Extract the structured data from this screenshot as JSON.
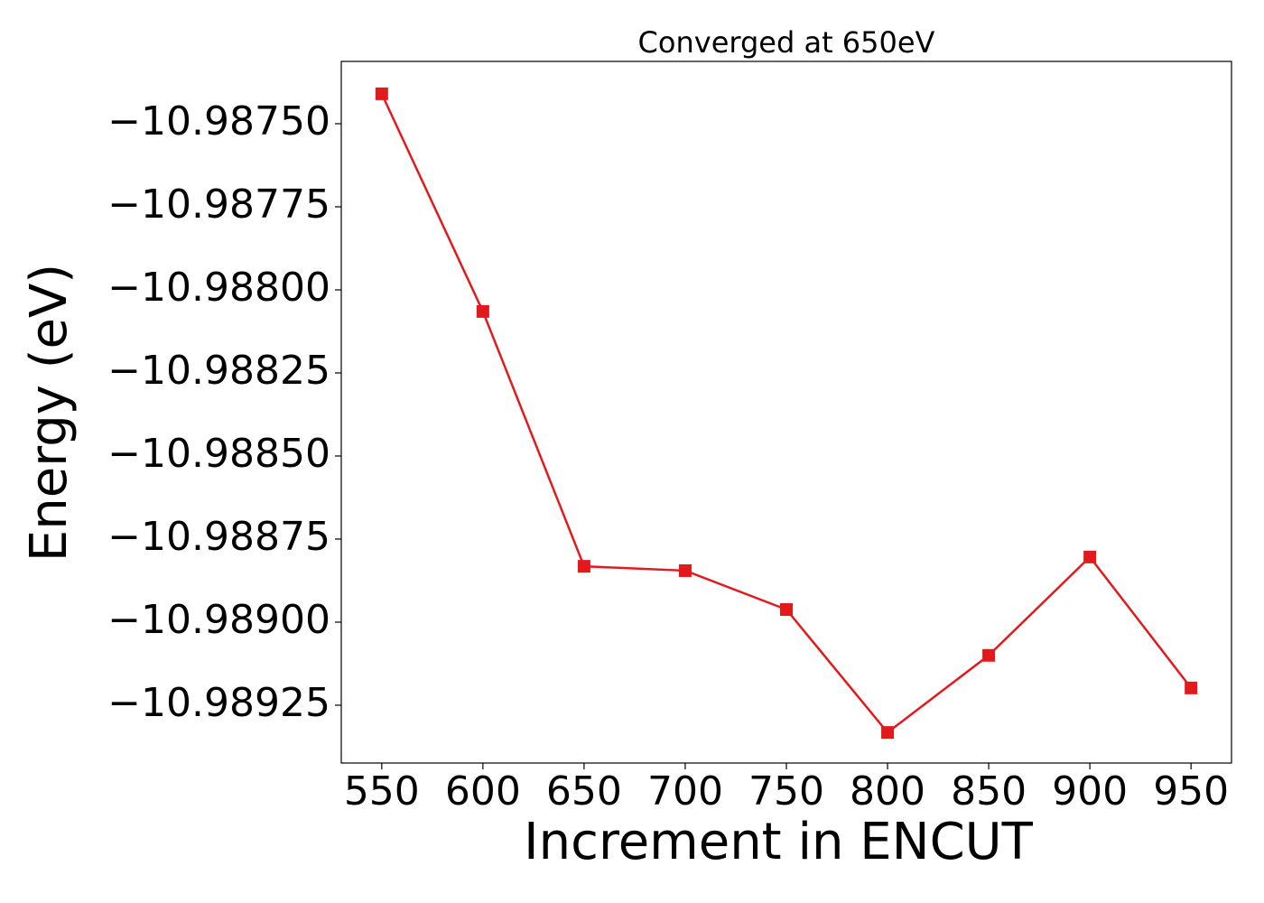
{
  "chart_data": {
    "type": "line",
    "title": "Converged at 650eV",
    "xlabel": "Increment in ENCUT",
    "ylabel": "Energy (eV)",
    "x": [
      550,
      600,
      650,
      700,
      750,
      800,
      850,
      900,
      950
    ],
    "series": [
      {
        "name": "Energy",
        "color": "#e31a1c",
        "values": [
          -10.98741,
          -10.988065,
          -10.988832,
          -10.988845,
          -10.988962,
          -10.989332,
          -10.9891,
          -10.988804,
          -10.989198
        ]
      }
    ],
    "xlim": [
      530,
      970
    ],
    "ylim": [
      -10.989424,
      -10.9873125
    ],
    "xticks": [
      550,
      600,
      650,
      700,
      750,
      800,
      850,
      900,
      950
    ],
    "yticks": [
      {
        "value": -10.9875,
        "label": "−10.98750"
      },
      {
        "value": -10.98775,
        "label": "−10.98775"
      },
      {
        "value": -10.988,
        "label": "−10.98800"
      },
      {
        "value": -10.98825,
        "label": "−10.98825"
      },
      {
        "value": -10.9885,
        "label": "−10.98850"
      },
      {
        "value": -10.98875,
        "label": "−10.98875"
      },
      {
        "value": -10.989,
        "label": "−10.98900"
      },
      {
        "value": -10.98925,
        "label": "−10.98925"
      }
    ],
    "marker": "square",
    "grid": false
  }
}
